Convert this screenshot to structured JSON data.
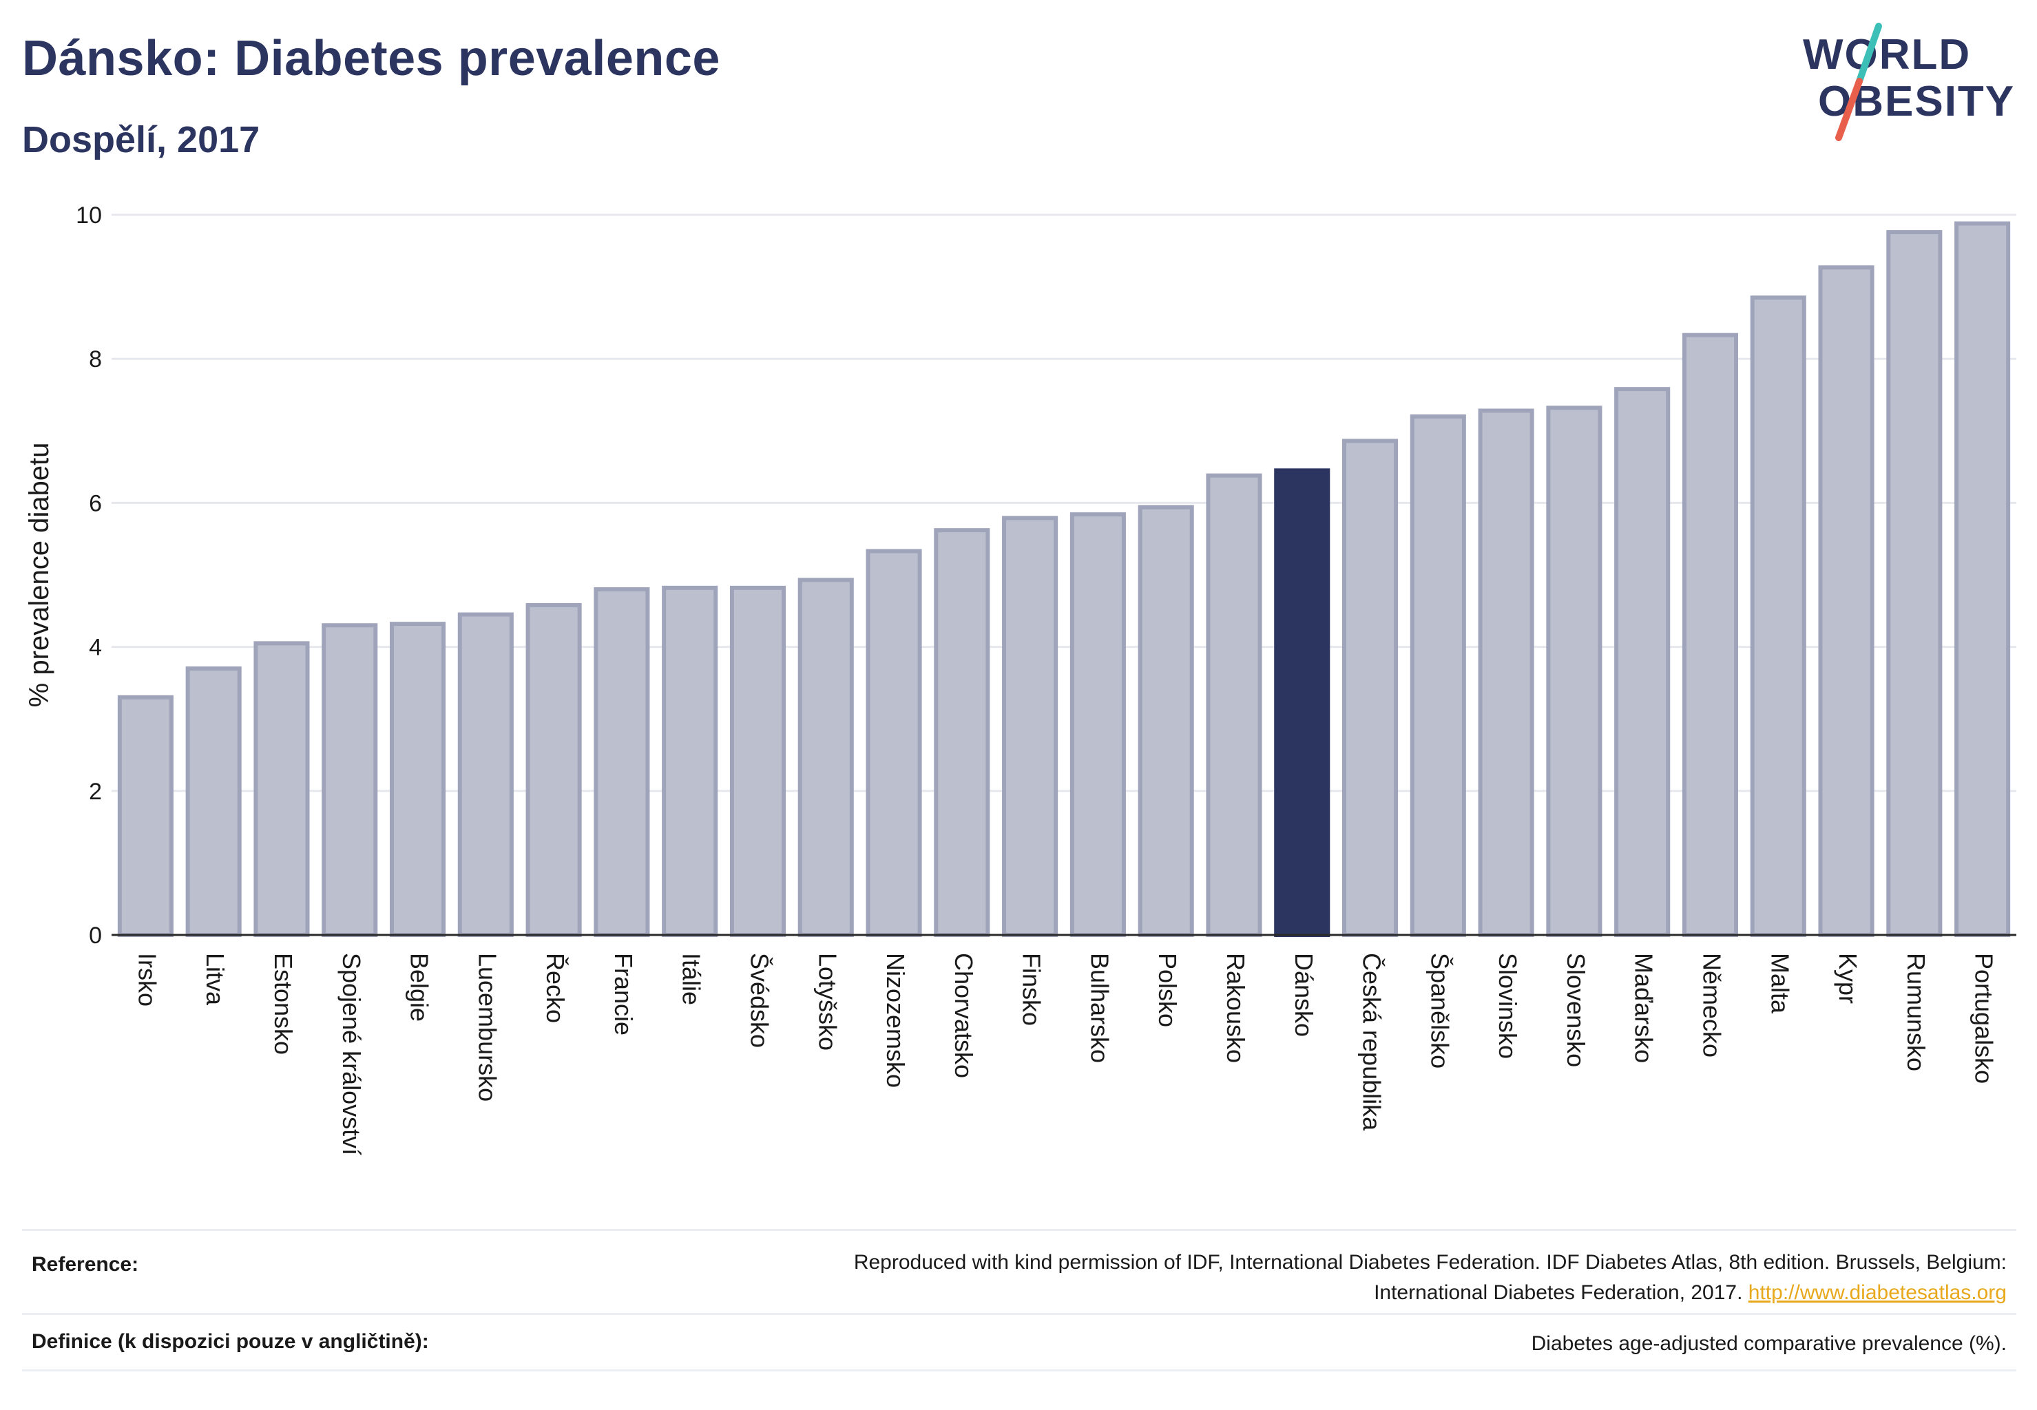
{
  "header": {
    "title": "Dánsko: Diabetes prevalence",
    "subtitle": "Dospělí, 2017"
  },
  "logo": {
    "line1": "WORLD",
    "line2": "OBESITY",
    "colors": {
      "text": "#2c3560",
      "slash_top": "#3bbfb6",
      "slash_bottom": "#e8604c"
    }
  },
  "chart_data": {
    "type": "bar",
    "ylabel": "% prevalence diabetu",
    "ylim": [
      0,
      10
    ],
    "yticks": [
      0,
      2,
      4,
      6,
      8,
      10
    ],
    "grid": true,
    "highlight": "Dánsko",
    "colors": {
      "bar": "#bcbfcd",
      "bar_border": "#9fa4ba",
      "highlight": "#2c3560"
    },
    "categories": [
      "Irsko",
      "Litva",
      "Estonsko",
      "Spojené království",
      "Belgie",
      "Lucembursko",
      "Řecko",
      "Francie",
      "Itálie",
      "Švédsko",
      "Lotyšsko",
      "Nizozemsko",
      "Chorvatsko",
      "Finsko",
      "Bulharsko",
      "Polsko",
      "Rakousko",
      "Dánsko",
      "Česká republika",
      "Španělsko",
      "Slovinsko",
      "Slovensko",
      "Maďarsko",
      "Německo",
      "Malta",
      "Kypr",
      "Rumunsko",
      "Portugalsko"
    ],
    "values": [
      3.3,
      3.7,
      4.05,
      4.3,
      4.32,
      4.45,
      4.58,
      4.8,
      4.82,
      4.82,
      4.93,
      5.33,
      5.62,
      5.79,
      5.84,
      5.94,
      6.38,
      6.45,
      6.86,
      7.2,
      7.28,
      7.32,
      7.58,
      8.33,
      8.85,
      9.27,
      9.76,
      9.88
    ]
  },
  "footer": {
    "reference_label": "Reference:",
    "reference_text_line1": "Reproduced with kind permission of IDF, International Diabetes Federation. IDF Diabetes Atlas, 8th edition. Brussels, Belgium:",
    "reference_text_line2": "International Diabetes Federation, 2017.",
    "reference_link": "http://www.diabetesatlas.org",
    "definition_label": "Definice (k dispozici pouze v angličtině):",
    "definition_text": "Diabetes age-adjusted comparative prevalence (%)."
  }
}
